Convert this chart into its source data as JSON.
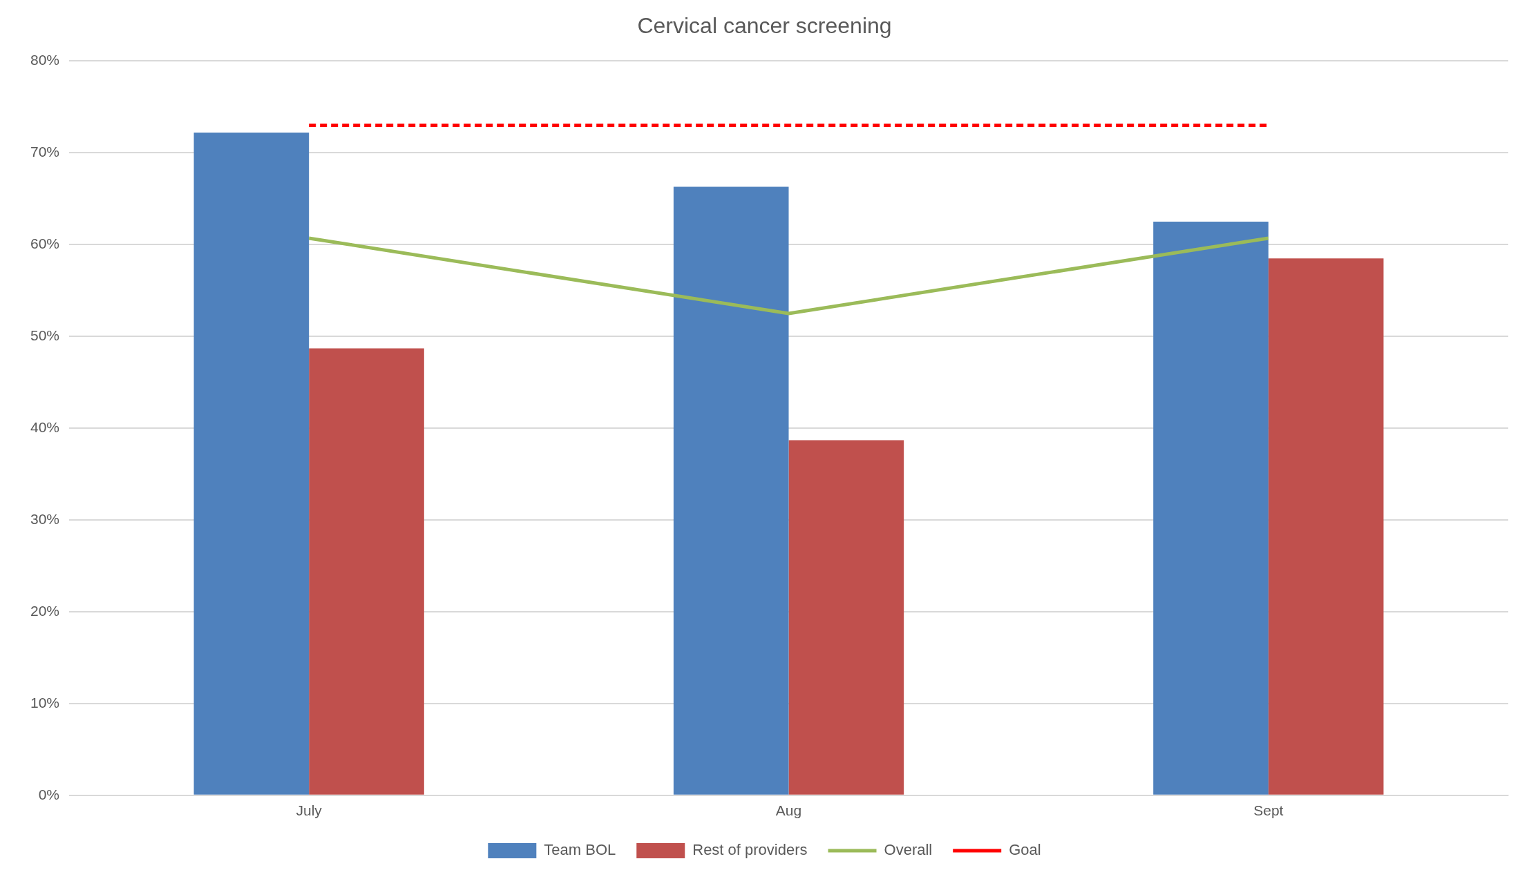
{
  "chart_data": {
    "type": "bar",
    "title": "Cervical cancer screening",
    "categories": [
      "July",
      "Aug",
      "Sept"
    ],
    "series": [
      {
        "name": "Team BOL",
        "color": "#4f81bd",
        "values": [
          72.2,
          66.3,
          62.5
        ]
      },
      {
        "name": "Rest of providers",
        "color": "#c0504d",
        "values": [
          48.7,
          38.7,
          58.5
        ]
      },
      {
        "name": "Overall",
        "type": "line",
        "color": "#9bbb59",
        "values": [
          60.7,
          52.5,
          60.7
        ],
        "line_style": "solid"
      },
      {
        "name": "Goal",
        "type": "line",
        "color": "#ff0000",
        "values": [
          73,
          73,
          73
        ],
        "line_style": "dashed"
      }
    ],
    "ylim": [
      0,
      80
    ],
    "yticks": [
      {
        "value": 0,
        "label": "0%"
      },
      {
        "value": 10,
        "label": "10%"
      },
      {
        "value": 20,
        "label": "20%"
      },
      {
        "value": 30,
        "label": "30%"
      },
      {
        "value": 40,
        "label": "40%"
      },
      {
        "value": 50,
        "label": "50%"
      },
      {
        "value": 60,
        "label": "60%"
      },
      {
        "value": 70,
        "label": "70%"
      },
      {
        "value": 80,
        "label": "80%"
      }
    ],
    "grid": "y",
    "legend": "bottom",
    "marker": "none"
  }
}
